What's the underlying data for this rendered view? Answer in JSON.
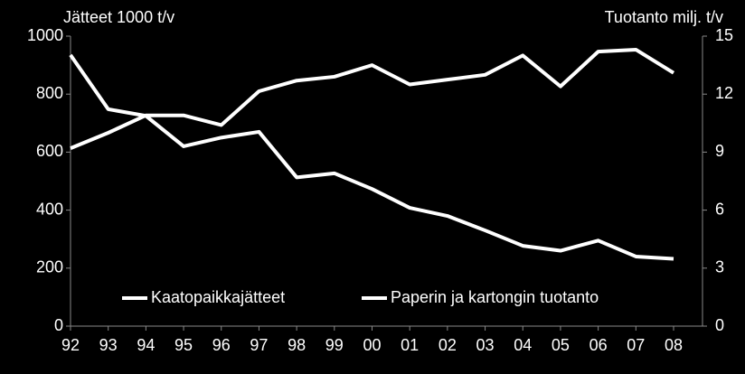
{
  "chart_data": {
    "type": "line",
    "y_label": "Jätteet 1000 t/v",
    "y2_label": "Tuotanto milj. t/v",
    "categories": [
      "92",
      "93",
      "94",
      "95",
      "96",
      "97",
      "98",
      "99",
      "00",
      "01",
      "02",
      "03",
      "04",
      "05",
      "06",
      "07",
      "08"
    ],
    "series": [
      {
        "name": "Kaatopaikkajätteet",
        "color": "#ffffff",
        "values": [
          935,
          748,
          725,
          620,
          650,
          670,
          513,
          527,
          473,
          408,
          380,
          330,
          277,
          260,
          295,
          240,
          232
        ]
      },
      {
        "name": "Paperin ja kartongin tuotanto",
        "color": "#ffffff",
        "axis": "y2",
        "values": [
          9.2,
          10.0,
          10.9,
          10.9,
          10.4,
          12.15,
          12.7,
          12.9,
          13.5,
          12.5,
          12.75,
          13.0,
          14.0,
          12.4,
          14.2,
          14.3,
          13.1
        ]
      }
    ],
    "ylim": [
      0,
      1000
    ],
    "yticks": [
      0,
      200,
      400,
      600,
      800,
      1000
    ],
    "y2lim": [
      0,
      15
    ],
    "y2ticks": [
      0,
      3,
      6,
      9,
      12,
      15
    ]
  }
}
